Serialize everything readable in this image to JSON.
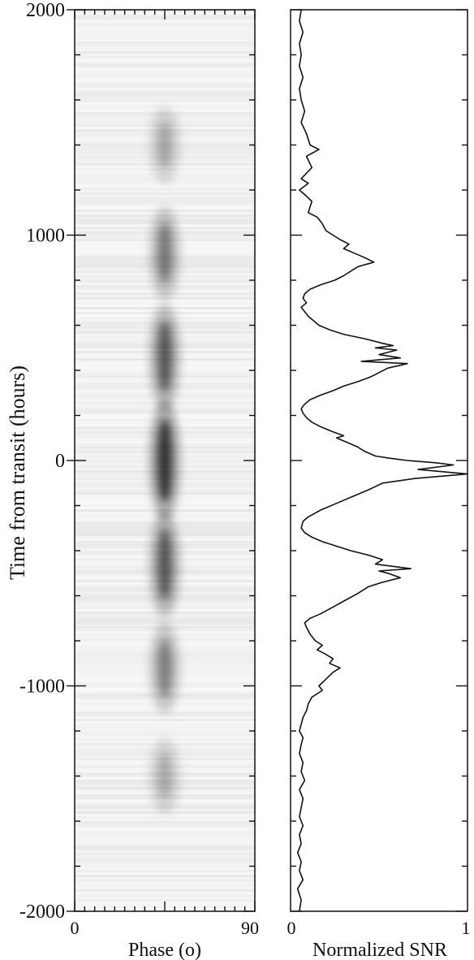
{
  "chart_data": [
    {
      "type": "heatmap",
      "xlabel": "Phase (o)",
      "ylabel": "Time from transit (hours)",
      "xlim": [
        0,
        90
      ],
      "ylim": [
        -2000,
        2000
      ],
      "x_tick_labels": [
        "0",
        "90"
      ],
      "y_tick_labels": [
        "2000",
        "1000",
        "0",
        "-1000",
        "-2000"
      ],
      "y_ticks": [
        2000,
        1000,
        0,
        -1000,
        -2000
      ],
      "colormap": "greyscale (white = low, black = high)",
      "signal_phase": 45,
      "bright_blobs": [
        {
          "time": 1400,
          "strength": 0.12
        },
        {
          "time": 920,
          "strength": 0.45
        },
        {
          "time": 460,
          "strength": 0.7
        },
        {
          "time": 0,
          "strength": 1.0
        },
        {
          "time": -460,
          "strength": 0.7
        },
        {
          "time": -920,
          "strength": 0.4
        },
        {
          "time": -1400,
          "strength": 0.1
        }
      ]
    },
    {
      "type": "line",
      "xlabel": "Normalized SNR",
      "ylabel": "",
      "xlim": [
        0,
        1
      ],
      "ylim": [
        -2000,
        2000
      ],
      "x_tick_labels": [
        "0",
        "1"
      ],
      "series": [
        {
          "points": [
            [
              0.06,
              2000
            ],
            [
              0.05,
              1950
            ],
            [
              0.07,
              1900
            ],
            [
              0.05,
              1850
            ],
            [
              0.06,
              1800
            ],
            [
              0.05,
              1750
            ],
            [
              0.07,
              1700
            ],
            [
              0.05,
              1650
            ],
            [
              0.06,
              1600
            ],
            [
              0.08,
              1550
            ],
            [
              0.06,
              1500
            ],
            [
              0.09,
              1450
            ],
            [
              0.11,
              1400
            ],
            [
              0.16,
              1380
            ],
            [
              0.09,
              1350
            ],
            [
              0.12,
              1300
            ],
            [
              0.06,
              1250
            ],
            [
              0.1,
              1230
            ],
            [
              0.05,
              1200
            ],
            [
              0.08,
              1180
            ],
            [
              0.12,
              1150
            ],
            [
              0.1,
              1100
            ],
            [
              0.15,
              1080
            ],
            [
              0.18,
              1050
            ],
            [
              0.2,
              1020
            ],
            [
              0.24,
              1000
            ],
            [
              0.28,
              980
            ],
            [
              0.33,
              960
            ],
            [
              0.3,
              940
            ],
            [
              0.36,
              920
            ],
            [
              0.42,
              900
            ],
            [
              0.47,
              880
            ],
            [
              0.38,
              860
            ],
            [
              0.34,
              840
            ],
            [
              0.3,
              820
            ],
            [
              0.25,
              800
            ],
            [
              0.17,
              780
            ],
            [
              0.11,
              760
            ],
            [
              0.08,
              740
            ],
            [
              0.07,
              720
            ],
            [
              0.09,
              700
            ],
            [
              0.06,
              680
            ],
            [
              0.08,
              660
            ],
            [
              0.1,
              640
            ],
            [
              0.13,
              620
            ],
            [
              0.16,
              600
            ],
            [
              0.22,
              580
            ],
            [
              0.3,
              560
            ],
            [
              0.42,
              540
            ],
            [
              0.52,
              520
            ],
            [
              0.58,
              510
            ],
            [
              0.48,
              500
            ],
            [
              0.6,
              490
            ],
            [
              0.5,
              470
            ],
            [
              0.62,
              455
            ],
            [
              0.4,
              440
            ],
            [
              0.66,
              430
            ],
            [
              0.55,
              410
            ],
            [
              0.5,
              390
            ],
            [
              0.45,
              370
            ],
            [
              0.38,
              350
            ],
            [
              0.3,
              330
            ],
            [
              0.24,
              310
            ],
            [
              0.17,
              290
            ],
            [
              0.11,
              270
            ],
            [
              0.08,
              250
            ],
            [
              0.06,
              230
            ],
            [
              0.07,
              210
            ],
            [
              0.09,
              190
            ],
            [
              0.12,
              170
            ],
            [
              0.17,
              150
            ],
            [
              0.23,
              130
            ],
            [
              0.3,
              110
            ],
            [
              0.26,
              100
            ],
            [
              0.32,
              80
            ],
            [
              0.38,
              60
            ],
            [
              0.42,
              40
            ],
            [
              0.48,
              20
            ],
            [
              0.56,
              10
            ],
            [
              0.66,
              0
            ],
            [
              0.82,
              -10
            ],
            [
              0.92,
              -20
            ],
            [
              0.72,
              -40
            ],
            [
              1.0,
              -60
            ],
            [
              0.7,
              -80
            ],
            [
              0.52,
              -100
            ],
            [
              0.44,
              -130
            ],
            [
              0.35,
              -160
            ],
            [
              0.26,
              -190
            ],
            [
              0.17,
              -220
            ],
            [
              0.1,
              -250
            ],
            [
              0.07,
              -270
            ],
            [
              0.06,
              -300
            ],
            [
              0.08,
              -320
            ],
            [
              0.12,
              -340
            ],
            [
              0.18,
              -360
            ],
            [
              0.26,
              -380
            ],
            [
              0.34,
              -400
            ],
            [
              0.44,
              -420
            ],
            [
              0.52,
              -440
            ],
            [
              0.48,
              -460
            ],
            [
              0.68,
              -480
            ],
            [
              0.5,
              -490
            ],
            [
              0.55,
              -500
            ],
            [
              0.62,
              -520
            ],
            [
              0.52,
              -540
            ],
            [
              0.44,
              -560
            ],
            [
              0.38,
              -590
            ],
            [
              0.31,
              -620
            ],
            [
              0.24,
              -650
            ],
            [
              0.17,
              -680
            ],
            [
              0.11,
              -700
            ],
            [
              0.08,
              -720
            ],
            [
              0.09,
              -740
            ],
            [
              0.11,
              -770
            ],
            [
              0.14,
              -800
            ],
            [
              0.18,
              -820
            ],
            [
              0.15,
              -840
            ],
            [
              0.2,
              -860
            ],
            [
              0.24,
              -880
            ],
            [
              0.22,
              -900
            ],
            [
              0.28,
              -920
            ],
            [
              0.24,
              -940
            ],
            [
              0.2,
              -970
            ],
            [
              0.16,
              -1000
            ],
            [
              0.18,
              -1020
            ],
            [
              0.12,
              -1050
            ],
            [
              0.1,
              -1080
            ],
            [
              0.09,
              -1110
            ],
            [
              0.07,
              -1140
            ],
            [
              0.06,
              -1170
            ],
            [
              0.05,
              -1200
            ],
            [
              0.07,
              -1230
            ],
            [
              0.06,
              -1260
            ],
            [
              0.05,
              -1300
            ],
            [
              0.07,
              -1340
            ],
            [
              0.06,
              -1380
            ],
            [
              0.08,
              -1420
            ],
            [
              0.05,
              -1460
            ],
            [
              0.07,
              -1500
            ],
            [
              0.06,
              -1540
            ],
            [
              0.05,
              -1580
            ],
            [
              0.07,
              -1620
            ],
            [
              0.05,
              -1660
            ],
            [
              0.06,
              -1700
            ],
            [
              0.04,
              -1740
            ],
            [
              0.06,
              -1780
            ],
            [
              0.05,
              -1820
            ],
            [
              0.07,
              -1860
            ],
            [
              0.04,
              -1900
            ],
            [
              0.06,
              -1950
            ],
            [
              0.05,
              -2000
            ]
          ]
        }
      ]
    }
  ]
}
